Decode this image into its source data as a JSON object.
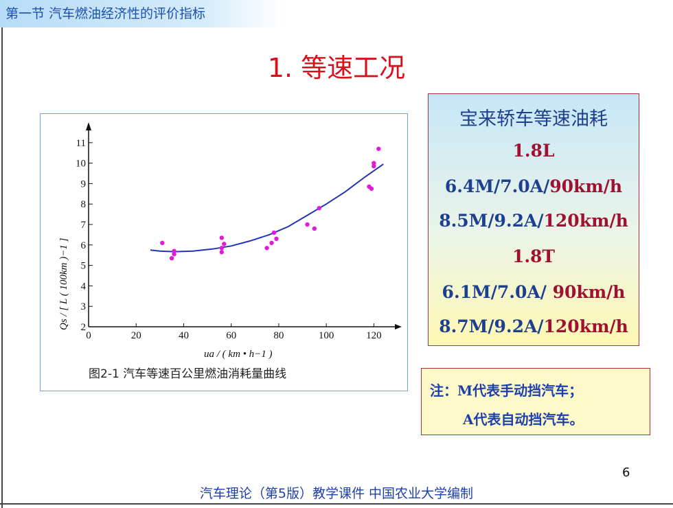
{
  "section_tab": "第一节  汽车燃油经济性的评价指标",
  "title": "1. 等速工况",
  "figure": {
    "caption": "图2-1   汽车等速百公里燃油消耗量曲线",
    "ylabel": "Qs / [ L ( 100km )−1 ]",
    "xlabel": "ua / ( km • h−1 )"
  },
  "chart_data": {
    "type": "scatter",
    "xlim": [
      0,
      130
    ],
    "ylim": [
      2,
      11.8
    ],
    "x_ticks": [
      0,
      20,
      40,
      60,
      80,
      100,
      120
    ],
    "y_ticks": [
      2,
      3,
      4,
      5,
      6,
      7,
      8,
      9,
      10,
      11
    ],
    "ylabel": "Qs / [ L ( 100km )−1 ]",
    "xlabel": "ua / ( km • h−1 )",
    "points": [
      [
        31,
        6.1
      ],
      [
        35,
        5.35
      ],
      [
        36,
        5.55
      ],
      [
        36,
        5.7
      ],
      [
        56,
        5.65
      ],
      [
        56,
        5.85
      ],
      [
        56,
        6.35
      ],
      [
        57,
        6.05
      ],
      [
        75,
        5.85
      ],
      [
        77,
        6.1
      ],
      [
        78,
        6.6
      ],
      [
        79,
        6.3
      ],
      [
        92,
        7.0
      ],
      [
        95,
        6.8
      ],
      [
        97,
        7.8
      ],
      [
        118,
        8.85
      ],
      [
        119,
        8.75
      ],
      [
        120,
        10.0
      ],
      [
        120,
        9.85
      ],
      [
        122,
        10.7
      ]
    ],
    "fit_curve": [
      [
        26,
        5.75
      ],
      [
        30,
        5.7
      ],
      [
        36,
        5.67
      ],
      [
        44,
        5.7
      ],
      [
        52,
        5.8
      ],
      [
        60,
        5.95
      ],
      [
        68,
        6.2
      ],
      [
        76,
        6.5
      ],
      [
        84,
        6.9
      ],
      [
        92,
        7.45
      ],
      [
        100,
        8.0
      ],
      [
        108,
        8.6
      ],
      [
        116,
        9.3
      ],
      [
        124,
        9.95
      ]
    ],
    "point_color": "#e01ad8",
    "curve_color": "#2232b8"
  },
  "info": {
    "heading": "宝来轿车等速油耗",
    "engine1": "1.8L",
    "e1_line1_blue": "6.4M/7.0A/",
    "e1_line1_red": "90km/h",
    "e1_line2_blue": "8.5M/9.2A/",
    "e1_line2_red": "120km/h",
    "engine2": "1.8T",
    "e2_line1_blue": "6.1M/7.0A/ ",
    "e2_line1_red": "90km/h",
    "e2_line2_blue": "8.7M/9.2A/",
    "e2_line2_red": "120km/h"
  },
  "note": {
    "line1": "注：M代表手动挡汽车；",
    "line2": "A代表自动挡汽车。"
  },
  "page_number": "6",
  "footer": "汽车理论（第5版）教学课件   中国农业大学编制"
}
